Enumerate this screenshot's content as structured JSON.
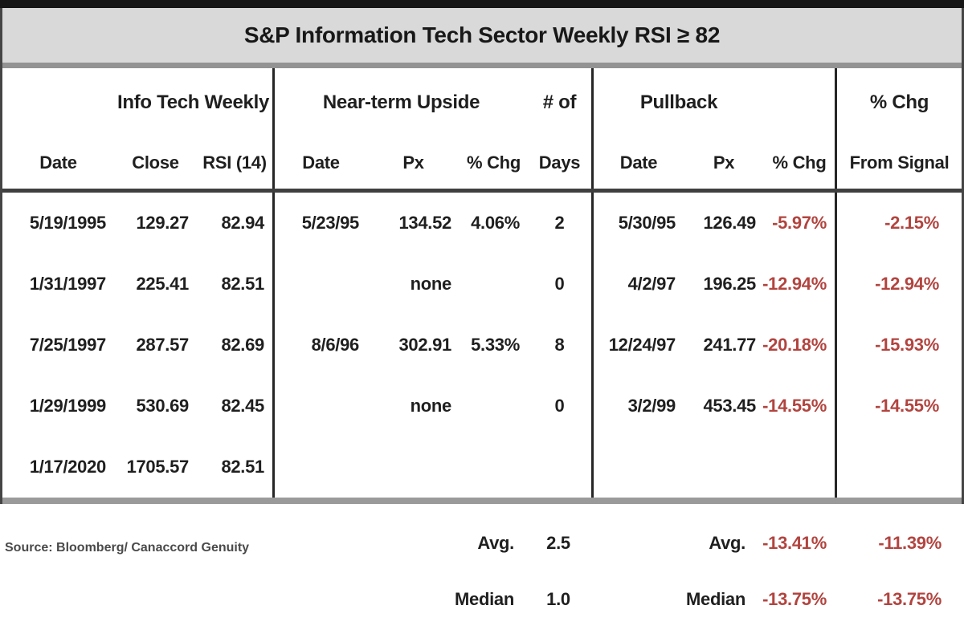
{
  "title": "S&P Information Tech Sector Weekly RSI ≥ 82",
  "chart_data": {
    "type": "table",
    "title": "S&P Information Tech Sector Weekly RSI ≥ 82",
    "column_groups": [
      {
        "label": "Info Tech Weekly",
        "columns": [
          "Date",
          "Close",
          "RSI (14)"
        ]
      },
      {
        "label": "Near-term Upside",
        "columns": [
          "Date",
          "Px",
          "% Chg"
        ]
      },
      {
        "label": "# of",
        "columns": [
          "Days"
        ]
      },
      {
        "label": "Pullback",
        "columns": [
          "Date",
          "Px",
          "% Chg"
        ]
      },
      {
        "label": "% Chg",
        "columns": [
          "From Signal"
        ]
      }
    ],
    "rows": [
      [
        "5/19/1995",
        "129.27",
        "82.94",
        "5/23/95",
        "134.52",
        "4.06%",
        "2",
        "5/30/95",
        "126.49",
        "-5.97%",
        "-2.15%"
      ],
      [
        "1/31/1997",
        "225.41",
        "82.51",
        "",
        "none",
        "",
        "0",
        "4/2/97",
        "196.25",
        "-12.94%",
        "-12.94%"
      ],
      [
        "7/25/1997",
        "287.57",
        "82.69",
        "8/6/96",
        "302.91",
        "5.33%",
        "8",
        "12/24/97",
        "241.77",
        "-20.18%",
        "-15.93%"
      ],
      [
        "1/29/1999",
        "530.69",
        "82.45",
        "",
        "none",
        "",
        "0",
        "3/2/99",
        "453.45",
        "-14.55%",
        "-14.55%"
      ],
      [
        "1/17/2020",
        "1705.57",
        "82.51",
        "",
        "",
        "",
        "",
        "",
        "",
        "",
        ""
      ]
    ],
    "summary": {
      "avg": {
        "days": 2.5,
        "pullback_pct_chg": -13.41,
        "pct_chg_from_signal": -11.39
      },
      "median": {
        "days": 1.0,
        "pullback_pct_chg": -13.75,
        "pct_chg_from_signal": -13.75
      }
    },
    "source": "Source: Bloomberg/ Canaccord Genuity"
  },
  "header": {
    "g_info": "Info Tech Weekly",
    "g_upside": "Near-term Upside",
    "g_numof": "# of",
    "g_pullback": "Pullback",
    "g_pctchg": "% Chg",
    "c_date1": "Date",
    "c_close": "Close",
    "c_rsi": "RSI (14)",
    "c_date2": "Date",
    "c_px2": "Px",
    "c_chg2": "% Chg",
    "c_days": "Days",
    "c_date3": "Date",
    "c_px3": "Px",
    "c_chg3": "% Chg",
    "c_fromsignal": "From Signal"
  },
  "footer": {
    "avg_label_days": "Avg.",
    "avg_days": "2.5",
    "avg_label_pullback": "Avg.",
    "avg_pullback": "-13.41%",
    "avg_from_signal": "-11.39%",
    "median_label_days": "Median",
    "median_days": "1.0",
    "median_label_pullback": "Median",
    "median_pullback": "-13.75%",
    "median_from_signal": "-13.75%"
  },
  "colors": {
    "negative": "#b2443f",
    "title_bg": "#d9d9d9",
    "border_dark": "#262626"
  }
}
